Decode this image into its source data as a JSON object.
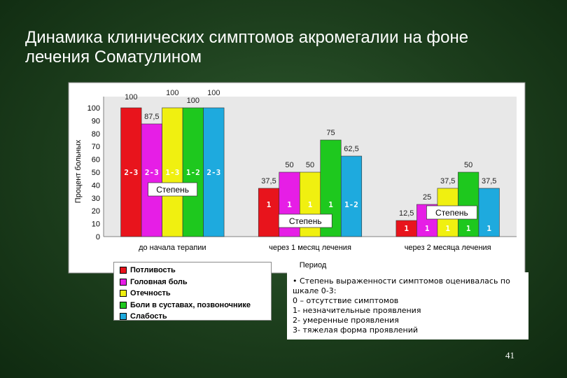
{
  "title": {
    "line1": "Динамика клинических симптомов акромегалии на фоне",
    "line2": "лечения Соматулином"
  },
  "chart_data": {
    "type": "bar",
    "ylabel": "Процент больных",
    "xlabel": "Период",
    "ylim": [
      0,
      100
    ],
    "yticks": [
      0,
      10,
      20,
      30,
      40,
      50,
      60,
      70,
      80,
      90,
      100
    ],
    "grid": false,
    "legend_position": "bottom-left",
    "categories": [
      "до начала терапии",
      "через 1  месяц  лечения",
      "через 2 месяца лечения"
    ],
    "series": [
      {
        "name": "Потливость",
        "color": "#e8141c",
        "values": [
          100,
          37.5,
          12.5
        ],
        "labels": [
          "100",
          "37,5",
          "12,5"
        ]
      },
      {
        "name": "Головная боль",
        "color": "#e61ee6",
        "values": [
          87.5,
          50,
          25
        ],
        "labels": [
          "87,5",
          "50",
          "25"
        ]
      },
      {
        "name": "Отечность",
        "color": "#f0f010",
        "values": [
          100,
          50,
          37.5
        ],
        "labels": [
          "100",
          "50",
          "37,5"
        ]
      },
      {
        "name": "Боли в суставах, позвоночнике",
        "color": "#1ec81e",
        "values": [
          100,
          75,
          50
        ],
        "labels": [
          "100",
          "75",
          "50"
        ]
      },
      {
        "name": "Слабость",
        "color": "#1eaade",
        "values": [
          100,
          62.5,
          37.5
        ],
        "labels": [
          "100",
          "62,5",
          "37,5"
        ]
      }
    ],
    "severity_labels": [
      [
        "2-3",
        "2-3",
        "1-3",
        "1-2",
        "2-3"
      ],
      [
        "1",
        "1",
        "1",
        "1",
        "1-2"
      ],
      [
        "1",
        "1",
        "1",
        "1",
        "1"
      ]
    ],
    "stage_callout": "Степень"
  },
  "note": {
    "lines": [
      "• Степень выраженности симптомов оценивалась по",
      "шкале 0-3:",
      "0 – отсутствие симптомов",
      "1- незначительные проявления",
      "2- умеренные проявления",
      "3- тяжелая форма проявлений"
    ]
  },
  "page_number": "41"
}
